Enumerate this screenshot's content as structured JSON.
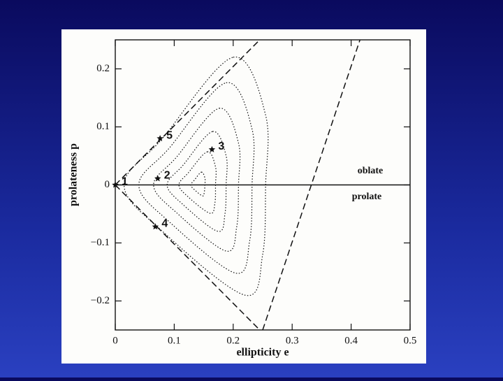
{
  "chart_data": {
    "type": "scatter",
    "xlabel": "ellipticity e",
    "ylabel": "prolateness p",
    "xlim": [
      0,
      0.5
    ],
    "ylim": [
      -0.25,
      0.25
    ],
    "xticks": [
      0,
      0.1,
      0.2,
      0.3,
      0.4,
      0.5
    ],
    "yticks": [
      {
        "value": -0.2,
        "label": "−0.2"
      },
      {
        "value": -0.1,
        "label": "−0.1"
      },
      0,
      0.1,
      0.2
    ],
    "color": "#111111",
    "points": {
      "labels": [
        "1",
        "2",
        "3",
        "4",
        "5"
      ],
      "x": [
        0,
        0.072,
        0.164,
        0.068,
        0.076
      ],
      "y": [
        0,
        0.011,
        0.061,
        -0.072,
        0.08
      ]
    },
    "lines": [
      {
        "x": [
          0,
          0.245
        ],
        "y": [
          0,
          0.25
        ],
        "dashed": true
      },
      {
        "x": [
          0,
          0.245
        ],
        "y": [
          0,
          -0.25
        ],
        "dashed": true
      },
      {
        "x": [
          0.25,
          0.415
        ],
        "y": [
          -0.25,
          0.25
        ],
        "dashed": true
      },
      {
        "x": [
          0,
          0.5
        ],
        "y": [
          0,
          0
        ],
        "dashed": false
      }
    ],
    "contours": [
      {
        "x": [
          0.2,
          0.255,
          0.255,
          0.25,
          0.22,
          0.08,
          0.015,
          0.08
        ],
        "y": [
          0.22,
          0.12,
          0,
          -0.12,
          -0.19,
          -0.08,
          0,
          0.08
        ]
      },
      {
        "x": [
          0.188,
          0.232,
          0.232,
          0.228,
          0.204,
          0.092,
          0.04,
          0.092
        ],
        "y": [
          0.176,
          0.096,
          0,
          -0.096,
          -0.152,
          -0.064,
          0,
          0.064
        ]
      },
      {
        "x": [
          0.176,
          0.209,
          0.209,
          0.206,
          0.188,
          0.104,
          0.065,
          0.104
        ],
        "y": [
          0.132,
          0.072,
          0,
          -0.072,
          -0.114,
          -0.048,
          0,
          0.048
        ]
      },
      {
        "x": [
          0.165,
          0.188,
          0.188,
          0.186,
          0.174,
          0.115,
          0.088,
          0.115
        ],
        "y": [
          0.092,
          0.05,
          0,
          -0.05,
          -0.08,
          -0.034,
          0,
          0.034
        ]
      },
      {
        "x": [
          0.156,
          0.17,
          0.17,
          0.169,
          0.161,
          0.124,
          0.108,
          0.124
        ],
        "y": [
          0.057,
          0.031,
          0,
          -0.031,
          -0.049,
          -0.021,
          0,
          0.021
        ]
      },
      {
        "x": [
          0.146,
          0.152,
          0.152,
          0.151,
          0.148,
          0.134,
          0.128,
          0.134
        ],
        "y": [
          0.022,
          0.012,
          0,
          -0.012,
          -0.019,
          -0.008,
          0,
          0.008
        ]
      }
    ],
    "annotations": [
      "oblate",
      "prolate"
    ]
  }
}
